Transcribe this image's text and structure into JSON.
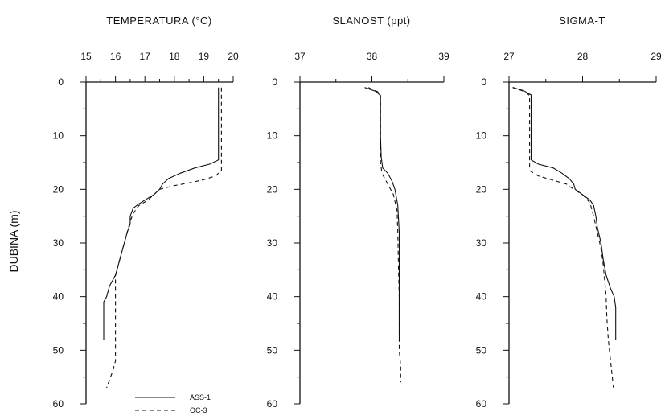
{
  "chart_data": {
    "type": "line",
    "ylabel": "DUBINA (m)",
    "yaxis": {
      "lim": [
        0,
        60
      ],
      "inverted": true,
      "ticks": [
        0,
        10,
        20,
        30,
        40,
        50,
        60
      ],
      "tick_labels": [
        "0",
        "10",
        "20",
        "30",
        "40",
        "50",
        "60"
      ]
    },
    "legend": {
      "placement": "bottom-left",
      "entries": [
        {
          "label": "ASS-1",
          "style": "solid"
        },
        {
          "label": "OC-3",
          "style": "dashed"
        }
      ]
    },
    "panels": [
      {
        "title": "TEMPERATURA (°C)",
        "xlim": [
          15,
          20
        ],
        "xaxis_position": "top",
        "xticks": [
          15,
          16,
          17,
          18,
          19,
          20
        ],
        "xtick_labels": [
          "15",
          "16",
          "17",
          "18",
          "19",
          "20"
        ],
        "series": [
          {
            "legend_ref": 0,
            "points": [
              [
                19.5,
                1
              ],
              [
                19.5,
                5
              ],
              [
                19.5,
                10
              ],
              [
                19.5,
                14.5
              ],
              [
                19.2,
                15.3
              ],
              [
                18.7,
                16
              ],
              [
                18.2,
                17
              ],
              [
                17.8,
                18
              ],
              [
                17.6,
                19
              ],
              [
                17.5,
                20
              ],
              [
                17.3,
                21
              ],
              [
                17.0,
                22
              ],
              [
                16.8,
                22.7
              ],
              [
                16.6,
                23.5
              ],
              [
                16.5,
                25
              ],
              [
                16.5,
                26.5
              ],
              [
                16.4,
                28
              ],
              [
                16.3,
                30
              ],
              [
                16.2,
                32
              ],
              [
                16.1,
                34
              ],
              [
                16.0,
                36
              ],
              [
                15.8,
                38
              ],
              [
                15.7,
                40
              ],
              [
                15.6,
                41
              ],
              [
                15.6,
                44
              ],
              [
                15.6,
                46
              ],
              [
                15.6,
                48
              ]
            ]
          },
          {
            "legend_ref": 1,
            "points": [
              [
                19.6,
                1
              ],
              [
                19.6,
                5
              ],
              [
                19.6,
                10
              ],
              [
                19.6,
                15
              ],
              [
                19.6,
                16.5
              ],
              [
                19.4,
                17.5
              ],
              [
                19.0,
                18.2
              ],
              [
                18.5,
                18.8
              ],
              [
                18.0,
                19.3
              ],
              [
                17.5,
                20
              ],
              [
                17.3,
                21
              ],
              [
                17.1,
                22
              ],
              [
                16.8,
                23
              ],
              [
                16.6,
                24.5
              ],
              [
                16.5,
                26
              ],
              [
                16.4,
                28
              ],
              [
                16.3,
                30
              ],
              [
                16.2,
                32
              ],
              [
                16.1,
                34
              ],
              [
                16.0,
                36
              ],
              [
                16.0,
                38
              ],
              [
                16.0,
                40
              ],
              [
                16.0,
                42
              ],
              [
                16.0,
                44
              ],
              [
                16.0,
                46
              ],
              [
                16.0,
                48
              ],
              [
                16.0,
                50
              ],
              [
                16.0,
                52
              ],
              [
                15.9,
                54
              ],
              [
                15.7,
                57
              ]
            ]
          }
        ]
      },
      {
        "title": "SLANOST (ppt)",
        "xlim": [
          37,
          39
        ],
        "xaxis_position": "top",
        "xticks": [
          37,
          38,
          39
        ],
        "xtick_labels": [
          "37",
          "38",
          "39"
        ],
        "series": [
          {
            "legend_ref": 0,
            "points": [
              [
                37.9,
                1
              ],
              [
                38.05,
                1.7
              ],
              [
                38.12,
                2.5
              ],
              [
                38.12,
                5
              ],
              [
                38.12,
                10
              ],
              [
                38.13,
                14
              ],
              [
                38.15,
                16
              ],
              [
                38.22,
                17
              ],
              [
                38.28,
                18.5
              ],
              [
                38.32,
                20
              ],
              [
                38.36,
                23
              ],
              [
                38.38,
                28
              ],
              [
                38.38,
                35
              ],
              [
                38.38,
                40
              ],
              [
                38.38,
                44
              ],
              [
                38.38,
                48
              ]
            ]
          },
          {
            "legend_ref": 1,
            "points": [
              [
                37.95,
                1
              ],
              [
                38.08,
                1.8
              ],
              [
                38.12,
                2.5
              ],
              [
                38.12,
                5
              ],
              [
                38.12,
                10
              ],
              [
                38.12,
                15
              ],
              [
                38.14,
                17
              ],
              [
                38.22,
                19
              ],
              [
                38.3,
                21
              ],
              [
                38.35,
                24
              ],
              [
                38.36,
                28
              ],
              [
                38.37,
                35
              ],
              [
                38.38,
                40
              ],
              [
                38.38,
                45
              ],
              [
                38.38,
                50
              ],
              [
                38.4,
                53
              ],
              [
                38.4,
                56
              ]
            ]
          }
        ]
      },
      {
        "title": "SIGMA-T",
        "xlim": [
          27,
          29
        ],
        "xaxis_position": "top",
        "xticks": [
          27,
          28,
          29
        ],
        "xtick_labels": [
          "27",
          "28",
          "29"
        ],
        "series": [
          {
            "legend_ref": 0,
            "points": [
              [
                27.05,
                1
              ],
              [
                27.2,
                1.6
              ],
              [
                27.3,
                2.4
              ],
              [
                27.3,
                5
              ],
              [
                27.3,
                10
              ],
              [
                27.3,
                14.5
              ],
              [
                27.4,
                15.3
              ],
              [
                27.6,
                16
              ],
              [
                27.72,
                17
              ],
              [
                27.82,
                18
              ],
              [
                27.88,
                19
              ],
              [
                27.9,
                20
              ],
              [
                28.0,
                21
              ],
              [
                28.1,
                22
              ],
              [
                28.15,
                23
              ],
              [
                28.18,
                25
              ],
              [
                28.2,
                27
              ],
              [
                28.25,
                30
              ],
              [
                28.28,
                33
              ],
              [
                28.32,
                36
              ],
              [
                28.38,
                38.5
              ],
              [
                28.43,
                40
              ],
              [
                28.45,
                42
              ],
              [
                28.45,
                45
              ],
              [
                28.45,
                48
              ]
            ]
          },
          {
            "legend_ref": 1,
            "points": [
              [
                27.05,
                1
              ],
              [
                27.22,
                1.8
              ],
              [
                27.28,
                2.5
              ],
              [
                27.28,
                5
              ],
              [
                27.28,
                10
              ],
              [
                27.28,
                15
              ],
              [
                27.28,
                16.5
              ],
              [
                27.4,
                17.5
              ],
              [
                27.6,
                18.3
              ],
              [
                27.78,
                19
              ],
              [
                27.88,
                20
              ],
              [
                28.0,
                21
              ],
              [
                28.1,
                22.5
              ],
              [
                28.15,
                25
              ],
              [
                28.2,
                28
              ],
              [
                28.25,
                31
              ],
              [
                28.28,
                34
              ],
              [
                28.3,
                37
              ],
              [
                28.32,
                40
              ],
              [
                28.33,
                44
              ],
              [
                28.35,
                48
              ],
              [
                28.38,
                52
              ],
              [
                28.42,
                57
              ]
            ]
          }
        ]
      }
    ]
  }
}
